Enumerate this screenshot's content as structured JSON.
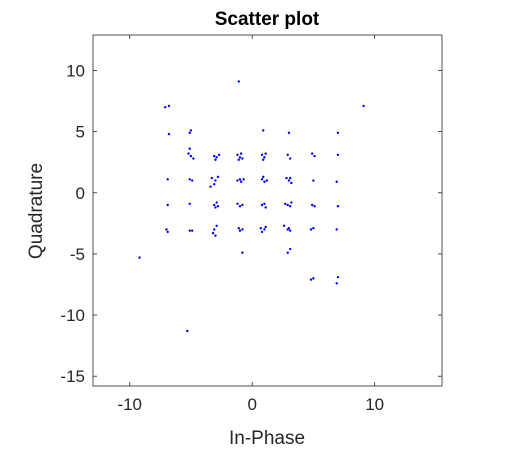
{
  "chart_data": {
    "type": "scatter",
    "title": "Scatter plot",
    "xlabel": "In-Phase",
    "ylabel": "Quadrature",
    "xlim": [
      -13,
      15.5
    ],
    "ylim": [
      -15.8,
      12.9
    ],
    "xticks": [
      -10,
      0,
      10
    ],
    "yticks": [
      -15,
      -10,
      -5,
      0,
      5,
      10
    ],
    "xtick_labels": [
      "-10",
      "0",
      "10"
    ],
    "ytick_labels": [
      "-15",
      "-10",
      "-5",
      "0",
      "5",
      "10"
    ],
    "grid": false,
    "legend": "none",
    "marker_color": "#0000ff",
    "points": [
      [
        -7.1,
        7.0
      ],
      [
        -6.8,
        7.1
      ],
      [
        -1.1,
        9.1
      ],
      [
        9.1,
        7.1
      ],
      [
        -6.8,
        4.8
      ],
      [
        -5.0,
        5.1
      ],
      [
        -5.1,
        4.9
      ],
      [
        0.9,
        5.1
      ],
      [
        3.0,
        4.9
      ],
      [
        7.0,
        4.9
      ],
      [
        -5.1,
        3.6
      ],
      [
        -5.2,
        3.2
      ],
      [
        -5.0,
        3.0
      ],
      [
        -4.8,
        2.8
      ],
      [
        -3.1,
        3.0
      ],
      [
        -2.9,
        2.9
      ],
      [
        -3.0,
        2.7
      ],
      [
        -2.7,
        3.1
      ],
      [
        -1.2,
        3.1
      ],
      [
        -1.0,
        2.9
      ],
      [
        -0.9,
        3.2
      ],
      [
        -1.1,
        2.7
      ],
      [
        -0.8,
        2.8
      ],
      [
        0.8,
        3.1
      ],
      [
        1.0,
        2.9
      ],
      [
        1.1,
        3.2
      ],
      [
        0.9,
        2.7
      ],
      [
        2.9,
        3.1
      ],
      [
        3.1,
        2.8
      ],
      [
        4.9,
        3.2
      ],
      [
        5.1,
        3.0
      ],
      [
        7.0,
        3.1
      ],
      [
        -6.9,
        1.1
      ],
      [
        -5.1,
        1.1
      ],
      [
        -4.9,
        1.0
      ],
      [
        -3.3,
        1.2
      ],
      [
        -3.0,
        1.0
      ],
      [
        -3.1,
        0.7
      ],
      [
        -3.4,
        0.5
      ],
      [
        -2.8,
        1.3
      ],
      [
        -1.0,
        1.1
      ],
      [
        -0.9,
        0.9
      ],
      [
        -1.2,
        1.0
      ],
      [
        -0.7,
        1.1
      ],
      [
        0.8,
        1.1
      ],
      [
        1.0,
        0.9
      ],
      [
        1.2,
        1.0
      ],
      [
        0.9,
        1.3
      ],
      [
        2.8,
        1.2
      ],
      [
        3.0,
        1.0
      ],
      [
        3.2,
        0.8
      ],
      [
        3.1,
        1.2
      ],
      [
        5.0,
        1.0
      ],
      [
        6.9,
        0.9
      ],
      [
        -6.9,
        -1.0
      ],
      [
        -5.1,
        -0.9
      ],
      [
        -2.9,
        -0.8
      ],
      [
        -3.1,
        -1.0
      ],
      [
        -3.0,
        -1.2
      ],
      [
        -2.8,
        -1.1
      ],
      [
        -1.2,
        -0.9
      ],
      [
        -1.0,
        -1.1
      ],
      [
        -0.8,
        -1.0
      ],
      [
        0.8,
        -1.0
      ],
      [
        1.0,
        -0.9
      ],
      [
        1.1,
        -1.2
      ],
      [
        2.7,
        -0.9
      ],
      [
        2.9,
        -1.0
      ],
      [
        3.1,
        -1.1
      ],
      [
        3.2,
        -0.8
      ],
      [
        4.9,
        -1.0
      ],
      [
        5.1,
        -1.1
      ],
      [
        7.0,
        -1.1
      ],
      [
        -7.0,
        -3.0
      ],
      [
        -6.9,
        -3.2
      ],
      [
        -5.1,
        -3.1
      ],
      [
        -4.9,
        -3.1
      ],
      [
        -3.1,
        -3.0
      ],
      [
        -3.2,
        -3.3
      ],
      [
        -2.9,
        -2.7
      ],
      [
        -3.0,
        -3.5
      ],
      [
        -1.1,
        -2.9
      ],
      [
        -1.0,
        -3.1
      ],
      [
        -0.8,
        -3.0
      ],
      [
        0.7,
        -2.9
      ],
      [
        0.8,
        -3.2
      ],
      [
        1.0,
        -3.0
      ],
      [
        1.1,
        -2.8
      ],
      [
        2.6,
        -2.7
      ],
      [
        2.9,
        -3.0
      ],
      [
        3.1,
        -3.1
      ],
      [
        3.0,
        -2.9
      ],
      [
        4.8,
        -3.0
      ],
      [
        5.0,
        -2.9
      ],
      [
        6.9,
        -3.0
      ],
      [
        3.1,
        -4.6
      ],
      [
        2.9,
        -4.9
      ],
      [
        -0.8,
        -4.9
      ],
      [
        -9.2,
        -5.3
      ],
      [
        5.0,
        -7.0
      ],
      [
        4.8,
        -7.1
      ],
      [
        7.0,
        -6.9
      ],
      [
        6.9,
        -7.4
      ],
      [
        -5.3,
        -11.3
      ]
    ]
  }
}
